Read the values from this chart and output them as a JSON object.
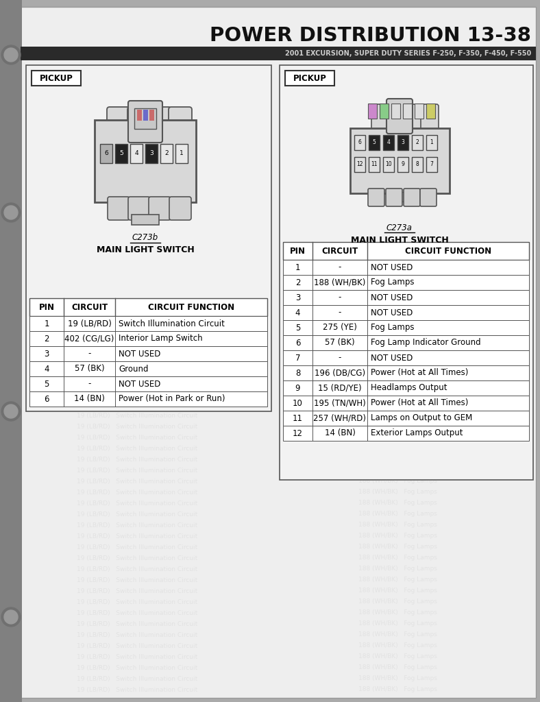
{
  "title": "POWER DISTRIBUTION 13-38",
  "subtitle": "2001 EXCURSION, SUPER DUTY SERIES F-250, F-350, F-450, F-550",
  "left_panel": {
    "label": "PICKUP",
    "connector_name": "C273b",
    "switch_name": "MAIN LIGHT SWITCH",
    "pins": [
      "1",
      "2",
      "3",
      "4",
      "5",
      "6"
    ],
    "circuits": [
      "19 (LB/RD)",
      "402 (CG/LG)",
      "-",
      "57 (BK)",
      "-",
      "14 (BN)"
    ],
    "functions": [
      "Switch Illumination Circuit",
      "Interior Lamp Switch",
      "NOT USED",
      "Ground",
      "NOT USED",
      "Power (Hot in Park or Run)"
    ]
  },
  "right_panel": {
    "label": "PICKUP",
    "connector_name": "C273a",
    "switch_name": "MAIN LIGHT SWITCH",
    "pins": [
      "1",
      "2",
      "3",
      "4",
      "5",
      "6",
      "7",
      "8",
      "9",
      "10",
      "11",
      "12"
    ],
    "circuits": [
      "-",
      "188 (WH/BK)",
      "-",
      "-",
      "275 (YE)",
      "57 (BK)",
      "-",
      "196 (DB/CG)",
      "15 (RD/YE)",
      "195 (TN/WH)",
      "257 (WH/RD)",
      "14 (BN)"
    ],
    "functions": [
      "NOT USED",
      "Fog Lamps",
      "NOT USED",
      "NOT USED",
      "Fog Lamps",
      "Fog Lamp Indicator Ground",
      "NOT USED",
      "Power (Hot at All Times)",
      "Headlamps Output",
      "Power (Hot at All Times)",
      "Lamps on Output to GEM",
      "Exterior Lamps Output"
    ]
  }
}
